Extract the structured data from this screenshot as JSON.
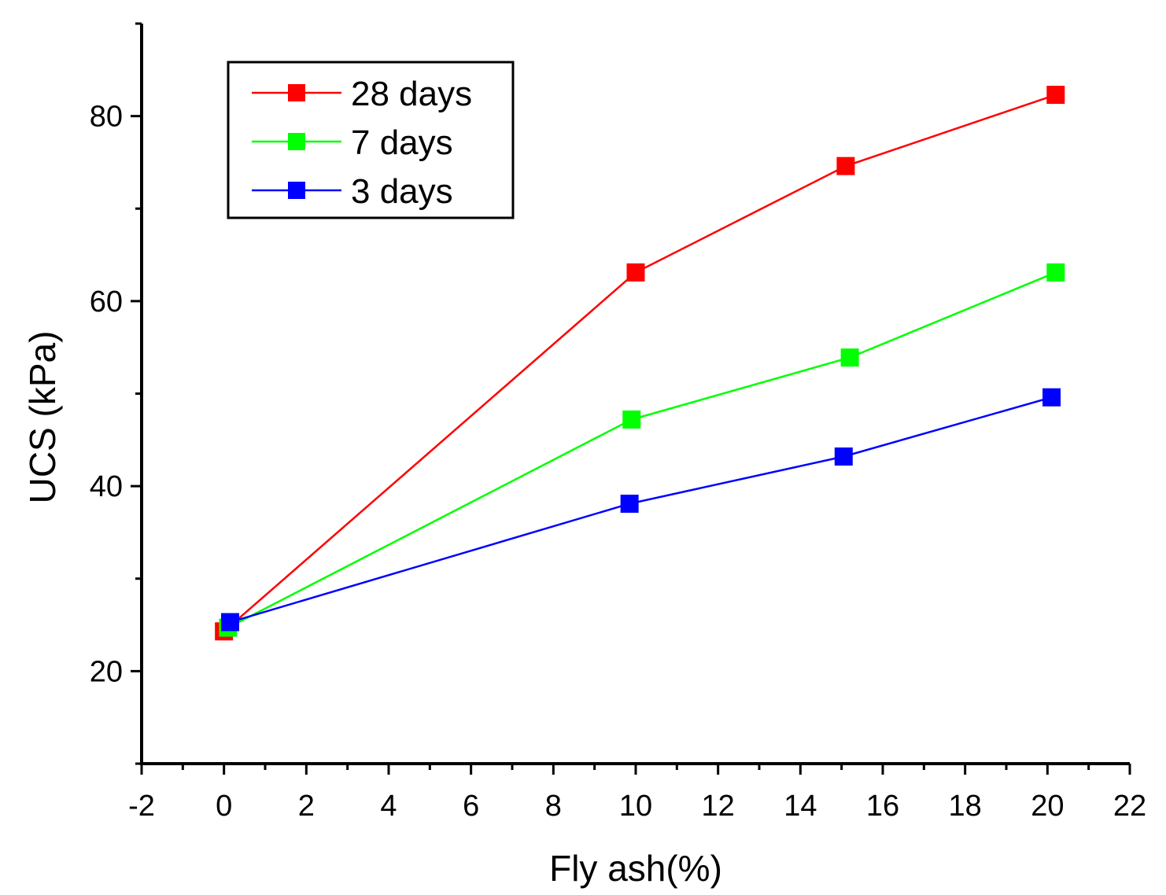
{
  "chart_data": {
    "type": "line",
    "title": "",
    "xlabel": "Fly ash(%)",
    "ylabel": "UCS (kPa)",
    "xlim": [
      -2,
      22
    ],
    "ylim": [
      10,
      90
    ],
    "x_ticks": [
      -2,
      0,
      2,
      4,
      6,
      8,
      10,
      12,
      14,
      16,
      18,
      20,
      22
    ],
    "y_ticks": [
      20,
      40,
      60,
      80
    ],
    "grid": false,
    "legend_position": "top-left",
    "series": [
      {
        "name": "28 days",
        "color": "#ff0000",
        "points": [
          [
            0,
            24.3
          ],
          [
            10,
            63.1
          ],
          [
            15.1,
            74.6
          ],
          [
            20.2,
            82.3
          ]
        ]
      },
      {
        "name": "7 days",
        "color": "#00ff00",
        "points": [
          [
            0.1,
            24.7
          ],
          [
            9.9,
            47.2
          ],
          [
            15.2,
            53.9
          ],
          [
            20.2,
            63.1
          ]
        ]
      },
      {
        "name": "3 days",
        "color": "#0000ff",
        "points": [
          [
            0.15,
            25.3
          ],
          [
            9.85,
            38.1
          ],
          [
            15.05,
            43.2
          ],
          [
            20.1,
            49.6
          ]
        ]
      }
    ]
  }
}
